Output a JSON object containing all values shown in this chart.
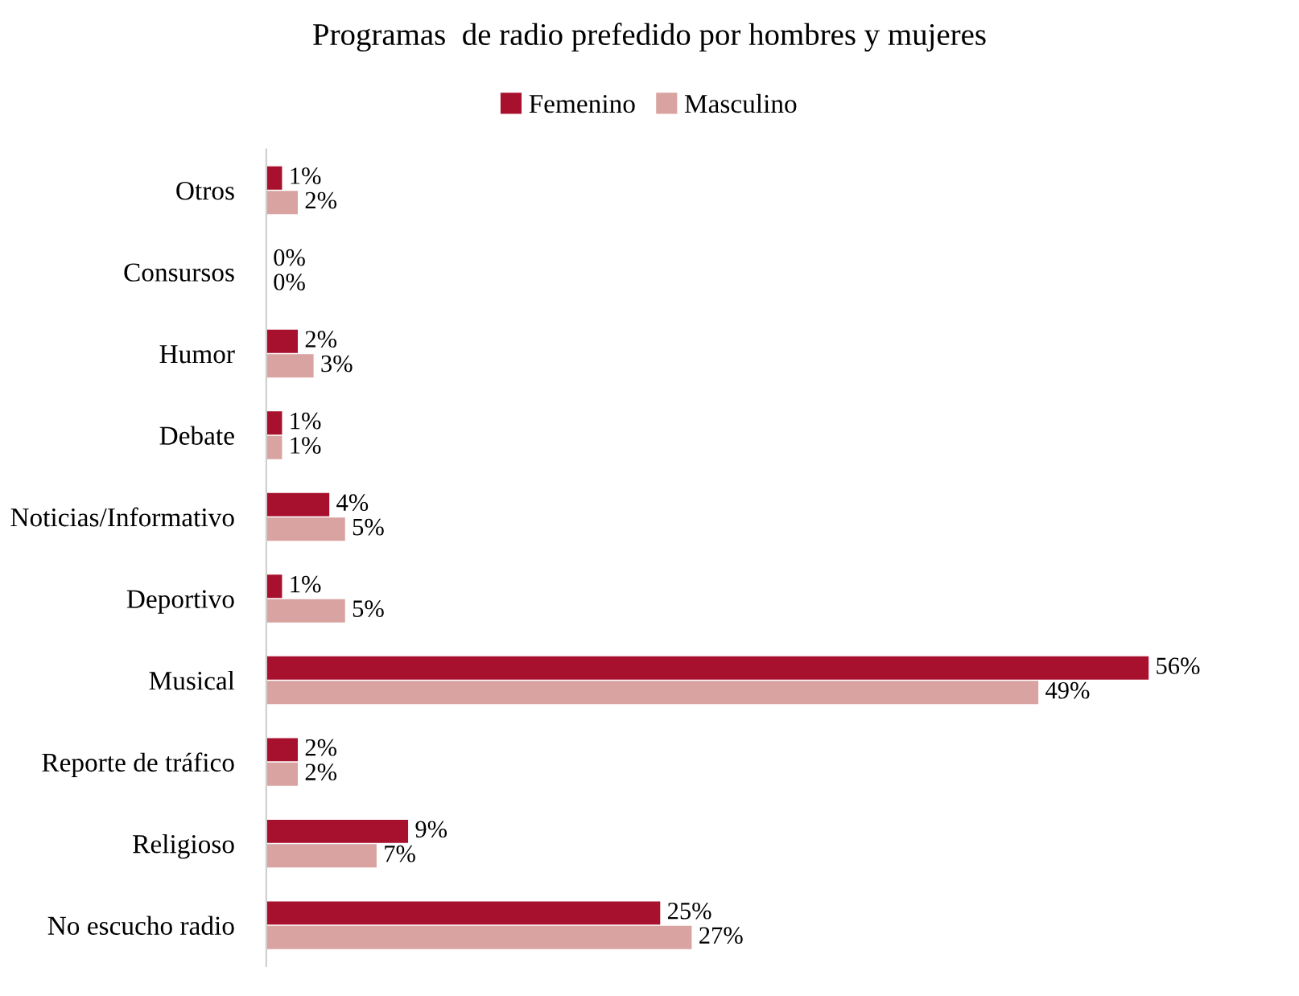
{
  "chart_data": {
    "type": "bar",
    "orientation": "horizontal",
    "title": "Programas  de radio prefedido por hombres y mujeres",
    "categories": [
      "Otros",
      "Consursos",
      "Humor",
      "Debate",
      "Noticias/Informativo",
      "Deportivo",
      "Musical",
      "Reporte de tráfico",
      "Religioso",
      "No escucho radio"
    ],
    "series": [
      {
        "name": "Femenino",
        "color": "#a8112e",
        "values": [
          1,
          0,
          2,
          1,
          4,
          1,
          56,
          2,
          9,
          25
        ],
        "value_labels": [
          "1%",
          "0%",
          "2%",
          "1%",
          "4%",
          "1%",
          "56%",
          "2%",
          "9%",
          "25%"
        ]
      },
      {
        "name": "Masculino",
        "color": "#d9a3a1",
        "values": [
          2,
          0,
          3,
          1,
          5,
          5,
          49,
          2,
          7,
          27
        ],
        "value_labels": [
          "2%",
          "0%",
          "3%",
          "1%",
          "5%",
          "5%",
          "49%",
          "2%",
          "7%",
          "27%"
        ]
      }
    ],
    "legend": "top",
    "grid": false,
    "tick_labels": "y"
  }
}
